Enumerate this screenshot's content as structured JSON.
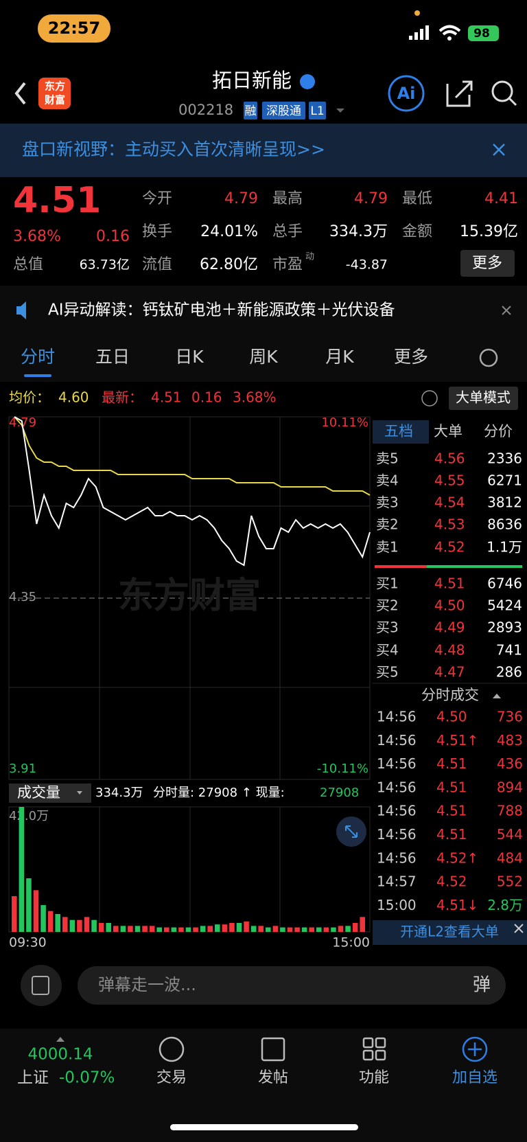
{
  "status": {
    "time": "22:57",
    "battery": "98"
  },
  "header": {
    "logo": [
      "东方",
      "财富"
    ],
    "title": "拓日新能",
    "code": "002218",
    "tags": [
      "融",
      "深股通",
      "L1"
    ]
  },
  "banner": "盘口新视野：主动买入首次清晰呈现>>",
  "quote": {
    "price": "4.51",
    "pct": "3.68%",
    "change": "0.16",
    "fields": [
      {
        "label": "今开",
        "value": "4.79",
        "color": "#f0343a"
      },
      {
        "label": "最高",
        "value": "4.79",
        "color": "#f0343a"
      },
      {
        "label": "最低",
        "value": "4.41",
        "color": "#f0343a"
      },
      {
        "label": "换手",
        "value": "24.01%",
        "color": "#ffffff"
      },
      {
        "label": "总手",
        "value": "334.3万",
        "color": "#ffffff"
      },
      {
        "label": "金额",
        "value": "15.39亿",
        "color": "#ffffff"
      },
      {
        "label": "总值",
        "value": "63.73亿",
        "color": "#ffffff"
      },
      {
        "label": "流值",
        "value": "62.80亿",
        "color": "#ffffff"
      },
      {
        "label": "市盈",
        "sup": "动",
        "value": "-43.87",
        "color": "#ffffff"
      }
    ],
    "more": "更多"
  },
  "ai_notice": "AI异动解读：钙钛矿电池＋新能源政策＋光伏设备",
  "tabs": [
    "分时",
    "五日",
    "日K",
    "周K",
    "月K",
    "更多"
  ],
  "info": {
    "avg_label": "均价：",
    "avg": "4.60",
    "latest_label": "最新：",
    "latest": "4.51",
    "change": "0.16",
    "pct": "3.68%",
    "mode": "大单模式"
  },
  "chart": {
    "ylim": [
      3.91,
      4.79
    ],
    "top_label": "4.79",
    "mid_label": "4.35",
    "bottom_label": "3.91",
    "top_pct": "10.11%",
    "bottom_pct": "-10.11%",
    "watermark": "东方财富",
    "prices": [
      4.79,
      4.78,
      4.66,
      4.53,
      4.6,
      4.55,
      4.52,
      4.58,
      4.57,
      4.6,
      4.64,
      4.62,
      4.57,
      4.56,
      4.55,
      4.54,
      4.55,
      4.56,
      4.57,
      4.55,
      4.55,
      4.56,
      4.55,
      4.55,
      4.54,
      4.55,
      4.54,
      4.52,
      4.49,
      4.47,
      4.44,
      4.43,
      4.55,
      4.5,
      4.47,
      4.47,
      4.52,
      4.51,
      4.54,
      4.52,
      4.53,
      4.52,
      4.53,
      4.52,
      4.53,
      4.51,
      4.48,
      4.45,
      4.51
    ],
    "avg": [
      4.79,
      4.77,
      4.72,
      4.69,
      4.68,
      4.68,
      4.67,
      4.67,
      4.66,
      4.66,
      4.66,
      4.66,
      4.66,
      4.66,
      4.65,
      4.65,
      4.65,
      4.65,
      4.65,
      4.65,
      4.65,
      4.65,
      4.65,
      4.65,
      4.64,
      4.64,
      4.64,
      4.64,
      4.64,
      4.64,
      4.63,
      4.63,
      4.63,
      4.63,
      4.63,
      4.63,
      4.62,
      4.62,
      4.62,
      4.62,
      4.62,
      4.62,
      4.62,
      4.61,
      4.61,
      4.61,
      4.61,
      4.61,
      4.6
    ]
  },
  "volume": {
    "label": "成交量",
    "total": "334.3万",
    "stats": "分时量: 27908 ↑ 现量:",
    "now": "27908",
    "max": {
      "value": 42,
      "label": "42.0万"
    },
    "start": "09:30",
    "end": "15:00",
    "palette": {
      "r": "#f0343a",
      "g": "#22c55e"
    },
    "values": [
      12,
      42,
      18,
      14,
      9,
      7,
      6,
      5,
      4,
      4,
      5,
      4,
      3,
      3,
      2,
      2,
      2,
      2,
      2,
      2,
      1.5,
      1.5,
      1.5,
      1.5,
      1.5,
      1.5,
      2,
      2,
      2.5,
      2.5,
      3,
      3,
      3.5,
      2,
      2,
      1.5,
      2,
      1.5,
      1.5,
      1.5,
      1.5,
      1.5,
      1.5,
      1.5,
      1.5,
      2,
      2,
      3,
      5
    ],
    "colors": [
      "r",
      "g",
      "g",
      "r",
      "g",
      "r",
      "g",
      "r",
      "g",
      "r",
      "r",
      "g",
      "r",
      "g",
      "r",
      "g",
      "r",
      "g",
      "r",
      "r",
      "g",
      "r",
      "g",
      "r",
      "g",
      "r",
      "g",
      "r",
      "g",
      "r",
      "r",
      "g",
      "r",
      "g",
      "r",
      "g",
      "r",
      "g",
      "r",
      "r",
      "g",
      "r",
      "g",
      "r",
      "g",
      "r",
      "g",
      "r",
      "r"
    ]
  },
  "book": {
    "tabs": [
      "五档",
      "大单",
      "分价"
    ],
    "sells": [
      {
        "name": "卖5",
        "price": "4.56",
        "vol": "2336"
      },
      {
        "name": "卖4",
        "price": "4.55",
        "vol": "6271"
      },
      {
        "name": "卖3",
        "price": "4.54",
        "vol": "3812"
      },
      {
        "name": "卖2",
        "price": "4.53",
        "vol": "8636"
      },
      {
        "name": "卖1",
        "price": "4.52",
        "vol": "1.1万"
      }
    ],
    "buys": [
      {
        "name": "买1",
        "price": "4.51",
        "vol": "6746"
      },
      {
        "name": "买2",
        "price": "4.50",
        "vol": "5424"
      },
      {
        "name": "买3",
        "price": "4.49",
        "vol": "2893"
      },
      {
        "name": "买4",
        "price": "4.48",
        "vol": "741"
      },
      {
        "name": "买5",
        "price": "4.47",
        "vol": "286"
      }
    ],
    "trades_title": "分时成交",
    "trades": [
      {
        "time": "14:56",
        "price": "4.50",
        "vol": "736",
        "color": "#f0343a"
      },
      {
        "time": "14:56",
        "price": "4.51↑",
        "vol": "483",
        "color": "#f0343a"
      },
      {
        "time": "14:56",
        "price": "4.51",
        "vol": "436",
        "color": "#f0343a"
      },
      {
        "time": "14:56",
        "price": "4.51",
        "vol": "894",
        "color": "#f0343a"
      },
      {
        "time": "14:56",
        "price": "4.51",
        "vol": "788",
        "color": "#f0343a"
      },
      {
        "time": "14:56",
        "price": "4.51",
        "vol": "544",
        "color": "#f0343a"
      },
      {
        "time": "14:56",
        "price": "4.52↑",
        "vol": "484",
        "color": "#f0343a"
      },
      {
        "time": "14:57",
        "price": "4.52",
        "vol": "552",
        "color": "#f0343a"
      },
      {
        "time": "15:00",
        "price": "4.51↓",
        "vol": "2.8万",
        "color": "#22c55e"
      }
    ],
    "l2": "开通L2查看大单"
  },
  "comment": "弹幕走一波...",
  "nav": {
    "index": "4000.14",
    "index_name": "上证",
    "index_pct": "-0.07%",
    "items": [
      "交易",
      "发帖",
      "功能",
      "加自选"
    ]
  }
}
